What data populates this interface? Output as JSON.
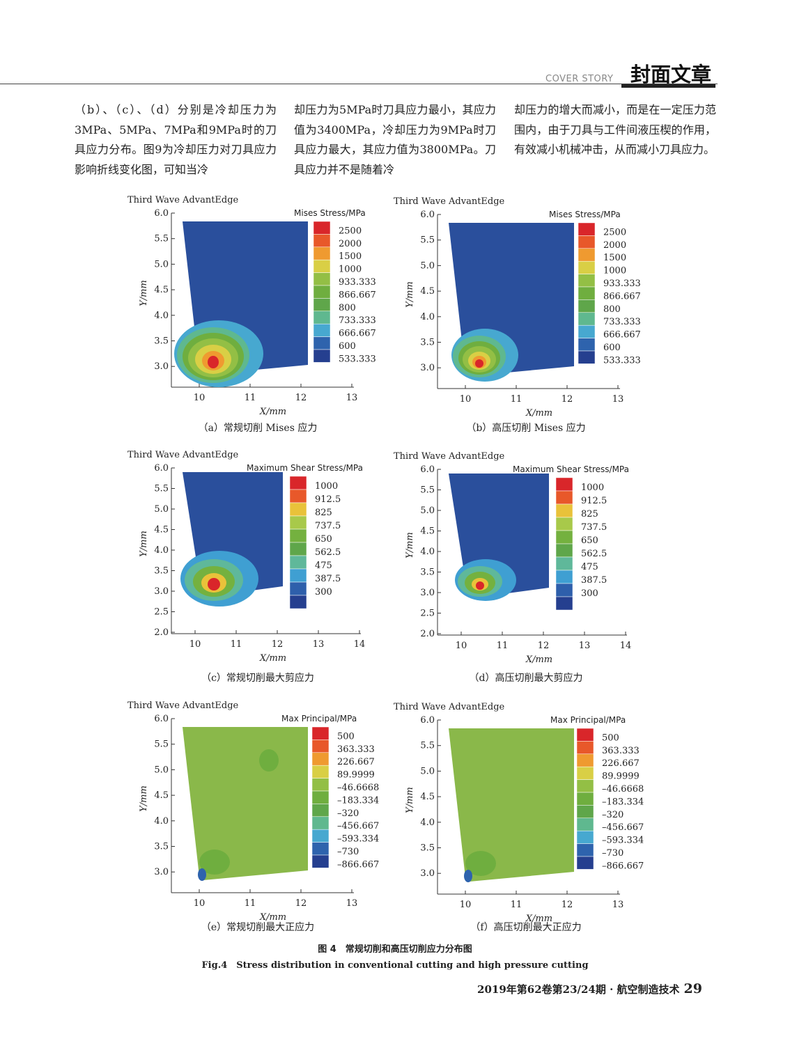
{
  "header": {
    "cover_en": "COVER STORY",
    "cover_zh": "封面文章"
  },
  "body_columns": [
    "（b）、（c）、（d）分别是冷却压力为3MPa、5MPa、7MPa和9MPa时的刀具应力分布。图9为冷却压力对刀具应力影响折线变化图，可知当冷",
    "却压力为5MPa时刀具应力最小，其应力值为3400MPa，冷却压力为9MPa时刀具应力最大，其应力值为3800MPa。刀具应力并不是随着冷",
    "却压力的增大而减小，而是在一定压力范围内，由于刀具与工件间液压楔的作用，有效减小机械冲击，从而减小刀具应力。"
  ],
  "colors": {
    "blue_bg": "#2a4f9c",
    "green_bg": "#8ab84a",
    "scale_mises": [
      "#d9262a",
      "#e8582a",
      "#ef9a30",
      "#d9cf45",
      "#93bf45",
      "#6fae3f",
      "#5fa64a",
      "#5fb88f",
      "#47a8d0",
      "#2e63ad",
      "#253f8f"
    ],
    "scale_shear": [
      "#d9262a",
      "#e8582a",
      "#e9c23a",
      "#a8c94a",
      "#74b13f",
      "#5fa64a",
      "#5fb89a",
      "#3f9fd2",
      "#2e5fab",
      "#253f8f"
    ],
    "scale_principal": [
      "#d9262a",
      "#e8582a",
      "#ef9a30",
      "#d9cf45",
      "#93bf45",
      "#6fae3f",
      "#5fa64a",
      "#5fb88f",
      "#47a8d0",
      "#2e63ad",
      "#253f8f"
    ]
  },
  "figure": {
    "panels": [
      {
        "software": "Third Wave AdvantEdge",
        "legend_title": "Mises Stress/MPa",
        "legend_values": [
          "2500",
          "2000",
          "1500",
          "1000",
          "933.333",
          "866.667",
          "800",
          "733.333",
          "666.667",
          "600",
          "533.333"
        ],
        "xlabel": "X/mm",
        "ylabel": "Y/mm",
        "xticks": [
          "10",
          "11",
          "12",
          "13"
        ],
        "yticks": [
          "6.0",
          "5.5",
          "5.0",
          "4.5",
          "4.0",
          "3.5",
          "3.0"
        ],
        "caption": "（a）常规切削 Mises 应力"
      },
      {
        "software": "Third Wave AdvantEdge",
        "legend_title": "Mises Stress/MPa",
        "legend_values": [
          "2500",
          "2000",
          "1500",
          "1000",
          "933.333",
          "866.667",
          "800",
          "733.333",
          "666.667",
          "600",
          "533.333"
        ],
        "xlabel": "X/mm",
        "ylabel": "Y/mm",
        "xticks": [
          "10",
          "11",
          "12",
          "13"
        ],
        "yticks": [
          "6.0",
          "5.5",
          "5.0",
          "4.5",
          "4.0",
          "3.5",
          "3.0"
        ],
        "caption": "（b）高压切削 Mises 应力"
      },
      {
        "software": "Third Wave AdvantEdge",
        "legend_title": "Maximum Shear Stress/MPa",
        "legend_values": [
          "1000",
          "912.5",
          "825",
          "737.5",
          "650",
          "562.5",
          "475",
          "387.5",
          "300"
        ],
        "xlabel": "X/mm",
        "ylabel": "Y/mm",
        "xticks": [
          "10",
          "11",
          "12",
          "13",
          "14"
        ],
        "yticks": [
          "6.0",
          "5.5",
          "5.0",
          "4.5",
          "4.0",
          "3.5",
          "3.0",
          "2.5",
          "2.0"
        ],
        "caption": "（c）常规切削最大剪应力"
      },
      {
        "software": "Third Wave AdvantEdge",
        "legend_title": "Maximum Shear Stress/MPa",
        "legend_values": [
          "1000",
          "912.5",
          "825",
          "737.5",
          "650",
          "562.5",
          "475",
          "387.5",
          "300"
        ],
        "xlabel": "X/mm",
        "ylabel": "Y/mm",
        "xticks": [
          "10",
          "11",
          "12",
          "13",
          "14"
        ],
        "yticks": [
          "6.0",
          "5.5",
          "5.0",
          "4.5",
          "4.0",
          "3.5",
          "3.0",
          "2.5",
          "2.0"
        ],
        "caption": "（d）高压切削最大剪应力"
      },
      {
        "software": "Third Wave AdvantEdge",
        "legend_title": "Max Principal/MPa",
        "legend_values": [
          "500",
          "363.333",
          "226.667",
          "89.9999",
          "–46.6668",
          "–183.334",
          "–320",
          "–456.667",
          "–593.334",
          "–730",
          "–866.667"
        ],
        "xlabel": "X/mm",
        "ylabel": "Y/mm",
        "xticks": [
          "10",
          "11",
          "12",
          "13"
        ],
        "yticks": [
          "6.0",
          "5.5",
          "5.0",
          "4.5",
          "4.0",
          "3.5",
          "3.0"
        ],
        "caption": "（e）常规切削最大正应力"
      },
      {
        "software": "Third Wave AdvantEdge",
        "legend_title": "Max Principal/MPa",
        "legend_values": [
          "500",
          "363.333",
          "226.667",
          "89.9999",
          "–46.6668",
          "–183.334",
          "–320",
          "–456.667",
          "–593.334",
          "–730",
          "–866.667"
        ],
        "xlabel": "X/mm",
        "ylabel": "Y/mm",
        "xticks": [
          "10",
          "11",
          "12",
          "13"
        ],
        "yticks": [
          "6.0",
          "5.5",
          "5.0",
          "4.5",
          "4.0",
          "3.5",
          "3.0"
        ],
        "caption": "（f）高压切削最大正应力"
      }
    ],
    "caption_zh": "图 4　常规切削和高压切削应力分布图",
    "caption_en": "Fig.4　Stress distribution in conventional cutting and high pressure cutting"
  },
  "footer": {
    "journal": "2019年第62卷第23/24期 · 航空制造技术",
    "page": "29"
  }
}
